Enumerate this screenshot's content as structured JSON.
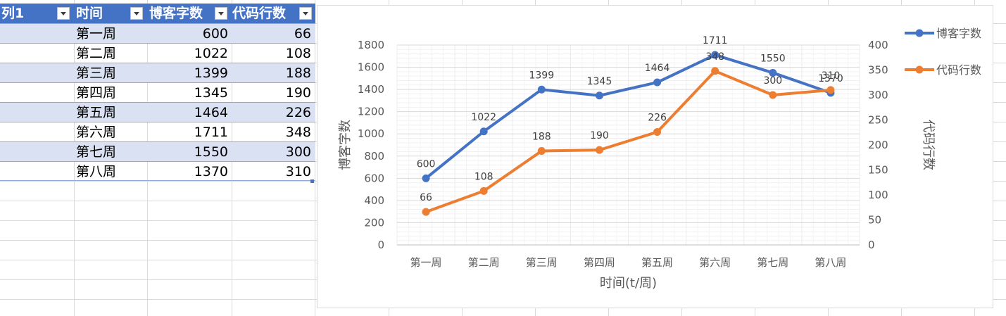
{
  "table": {
    "headers": [
      "列1",
      "时间",
      "博客字数",
      "代码行数"
    ],
    "rows": [
      {
        "col1": "",
        "time": "第一周",
        "words": "600",
        "lines": "66"
      },
      {
        "col1": "",
        "time": "第二周",
        "words": "1022",
        "lines": "108"
      },
      {
        "col1": "",
        "time": "第三周",
        "words": "1399",
        "lines": "188"
      },
      {
        "col1": "",
        "time": "第四周",
        "words": "1345",
        "lines": "190"
      },
      {
        "col1": "",
        "time": "第五周",
        "words": "1464",
        "lines": "226"
      },
      {
        "col1": "",
        "time": "第六周",
        "words": "1711",
        "lines": "348"
      },
      {
        "col1": "",
        "time": "第七周",
        "words": "1550",
        "lines": "300"
      },
      {
        "col1": "",
        "time": "第八周",
        "words": "1370",
        "lines": "310"
      }
    ]
  },
  "colors": {
    "header": "#4472c4",
    "band": "#d9e1f2",
    "series_blog": "#4472c4",
    "series_code": "#ed7d31"
  },
  "chart_data": {
    "type": "line",
    "categories": [
      "第一周",
      "第二周",
      "第三周",
      "第四周",
      "第五周",
      "第六周",
      "第七周",
      "第八周"
    ],
    "series": [
      {
        "name": "博客字数",
        "values": [
          600,
          1022,
          1399,
          1345,
          1464,
          1711,
          1550,
          1370
        ],
        "axis": "left",
        "color": "#4472c4"
      },
      {
        "name": "代码行数",
        "values": [
          66,
          108,
          188,
          190,
          226,
          348,
          300,
          310
        ],
        "axis": "right",
        "color": "#ed7d31"
      }
    ],
    "xlabel": "时间(t/周)",
    "ylabel": "博客字数",
    "y2label": "代码行数",
    "ylim": [
      0,
      1800
    ],
    "y2lim": [
      0,
      400
    ],
    "yticks": [
      0,
      200,
      400,
      600,
      800,
      1000,
      1200,
      1400,
      1600,
      1800
    ],
    "y2ticks": [
      0,
      50,
      100,
      150,
      200,
      250,
      300,
      350,
      400
    ],
    "grid": true,
    "data_labels": true,
    "legend_position": "right"
  }
}
